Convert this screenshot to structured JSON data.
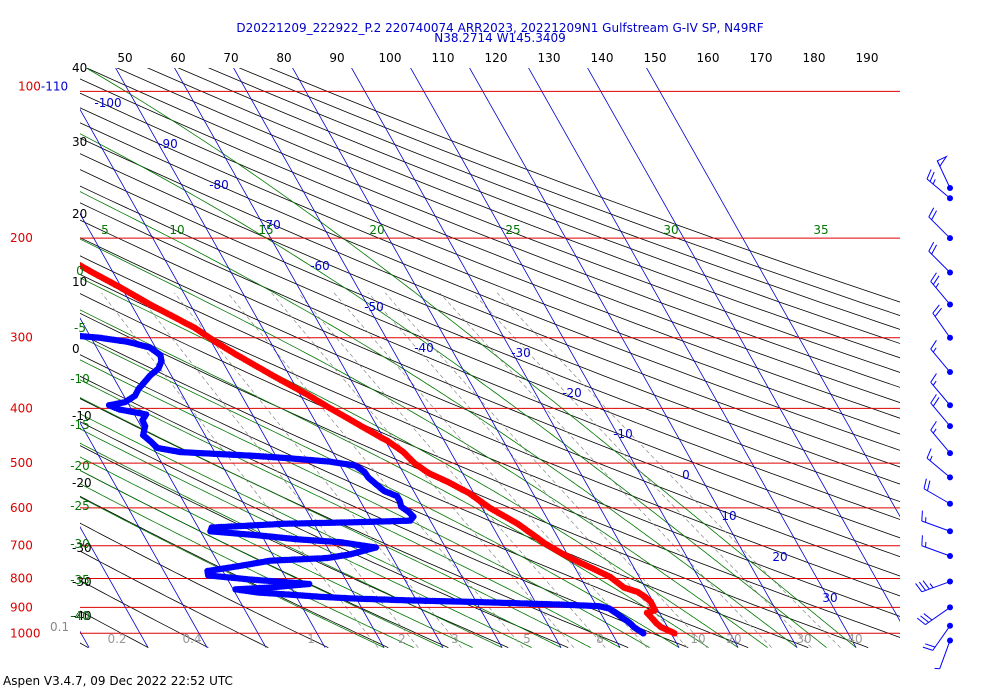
{
  "header": {
    "line1": "D20221209_222922_P.2 220740074 ARR2023, 20221209N1 Gulfstream G-IV SP, N49RF",
    "line2": "N38.2714 W145.3409"
  },
  "footer": {
    "text": "Aspen V3.4.7, 09 Dec 2022  22:52 UTC"
  },
  "colors": {
    "isobar": "#dd0000",
    "isotherm": "#0000cc",
    "dry_adiabat": "#000000",
    "moist_adiabat": "#007700",
    "mixing_ratio": "#888888",
    "temperature": "#ff0000",
    "dewpoint": "#0000ff"
  },
  "chart_data": {
    "type": "skew-t log-p",
    "pressure_axis": {
      "labels": [
        "100-110",
        "200",
        "300",
        "400",
        "500",
        "600",
        "700",
        "800",
        "900",
        "1000"
      ],
      "range_hPa": [
        110,
        1000
      ]
    },
    "height_labels": [
      "40",
      "30",
      "20",
      "10",
      "0",
      "-10",
      "-20",
      "-30",
      "-30",
      "-40"
    ],
    "height_extra_label": "0.1",
    "top_axis_labels": [
      "50",
      "60",
      "70",
      "80",
      "90",
      "100",
      "110",
      "120",
      "130",
      "140",
      "150",
      "160",
      "170",
      "180",
      "190"
    ],
    "isotherm_labels": [
      "-100",
      "-90",
      "-80",
      "-70",
      "-60",
      "-50",
      "-40",
      "-30",
      "-20",
      "-10",
      "0",
      "10",
      "20",
      "30"
    ],
    "moist_adiabat_labels": [
      "5",
      "10",
      "15",
      "20",
      "25",
      "30",
      "35"
    ],
    "left_green_labels": [
      "0",
      "-5",
      "-10",
      "-15",
      "-20",
      "-25",
      "-30",
      "-35",
      "-40"
    ],
    "mixing_ratio_labels": [
      "0.2",
      "0.4",
      "1",
      "2",
      "3",
      "5",
      "8",
      "10",
      "20",
      "30",
      "40"
    ],
    "temperature_profile": [
      {
        "p": 1000,
        "t": 10.6
      },
      {
        "p": 995,
        "t": 10.3
      },
      {
        "p": 985,
        "t": 9.6
      },
      {
        "p": 975,
        "t": 8.9
      },
      {
        "p": 960,
        "t": 8.5
      },
      {
        "p": 945,
        "t": 8.3
      },
      {
        "p": 920,
        "t": 7.9
      },
      {
        "p": 910,
        "t": 9.5
      },
      {
        "p": 880,
        "t": 9.6
      },
      {
        "p": 862,
        "t": 9.1
      },
      {
        "p": 845,
        "t": 8.3
      },
      {
        "p": 830,
        "t": 6.4
      },
      {
        "p": 795,
        "t": 5.1
      },
      {
        "p": 770,
        "t": 3.1
      },
      {
        "p": 740,
        "t": 0.5
      },
      {
        "p": 720,
        "t": -1.0
      },
      {
        "p": 693,
        "t": -2.8
      },
      {
        "p": 670,
        "t": -3.9
      },
      {
        "p": 640,
        "t": -5.5
      },
      {
        "p": 600,
        "t": -8.7
      },
      {
        "p": 565,
        "t": -10.8
      },
      {
        "p": 540,
        "t": -13.3
      },
      {
        "p": 520,
        "t": -15.8
      },
      {
        "p": 500,
        "t": -17.2
      },
      {
        "p": 478,
        "t": -18.0
      },
      {
        "p": 457,
        "t": -19.6
      },
      {
        "p": 443,
        "t": -21.2
      },
      {
        "p": 420,
        "t": -23.8
      },
      {
        "p": 400,
        "t": -26.2
      },
      {
        "p": 378,
        "t": -28.8
      },
      {
        "p": 350,
        "t": -32.8
      },
      {
        "p": 320,
        "t": -37.2
      },
      {
        "p": 305,
        "t": -39.3
      },
      {
        "p": 288,
        "t": -41.5
      },
      {
        "p": 262,
        "t": -46.8
      },
      {
        "p": 244,
        "t": -50.3
      },
      {
        "p": 230,
        "t": -53.5
      },
      {
        "p": 213,
        "t": -57.3
      },
      {
        "p": 200,
        "t": -60.4
      },
      {
        "p": 186,
        "t": -62.2
      },
      {
        "p": 178,
        "t": -62.5
      },
      {
        "p": 175,
        "t": -60.9
      },
      {
        "p": 170,
        "t": -58.5
      }
    ],
    "dewpoint_profile": [
      {
        "p": 1000,
        "t": 5.3
      },
      {
        "p": 990,
        "t": 4.9
      },
      {
        "p": 975,
        "t": 4.3
      },
      {
        "p": 958,
        "t": 4.0
      },
      {
        "p": 940,
        "t": 3.3
      },
      {
        "p": 920,
        "t": 2.6
      },
      {
        "p": 904,
        "t": 1.9
      },
      {
        "p": 895,
        "t": 0.3
      },
      {
        "p": 890,
        "t": -5.4
      },
      {
        "p": 885,
        "t": -12.8
      },
      {
        "p": 880,
        "t": -20.5
      },
      {
        "p": 877,
        "t": -26.5
      },
      {
        "p": 874,
        "t": -32.1
      },
      {
        "p": 868,
        "t": -40.3
      },
      {
        "p": 862,
        "t": -45.8
      },
      {
        "p": 855,
        "t": -50.4
      },
      {
        "p": 847,
        "t": -56.1
      },
      {
        "p": 836,
        "t": -59.6
      },
      {
        "p": 830,
        "t": -53.7
      },
      {
        "p": 818,
        "t": -46.6
      },
      {
        "p": 803,
        "t": -56.3
      },
      {
        "p": 790,
        "t": -62.9
      },
      {
        "p": 776,
        "t": -62.6
      },
      {
        "p": 760,
        "t": -56.6
      },
      {
        "p": 744,
        "t": -51.0
      },
      {
        "p": 736,
        "t": -41.1
      },
      {
        "p": 725,
        "t": -36.8
      },
      {
        "p": 705,
        "t": -31.8
      },
      {
        "p": 690,
        "t": -37.3
      },
      {
        "p": 682,
        "t": -44.2
      },
      {
        "p": 671,
        "t": -50.6
      },
      {
        "p": 660,
        "t": -58.3
      },
      {
        "p": 650,
        "t": -57.7
      },
      {
        "p": 640,
        "t": -45.0
      },
      {
        "p": 636,
        "t": -32.6
      },
      {
        "p": 632,
        "t": -23.4
      },
      {
        "p": 622,
        "t": -22.5
      },
      {
        "p": 611,
        "t": -22.8
      },
      {
        "p": 597,
        "t": -23.6
      },
      {
        "p": 583,
        "t": -23.3
      },
      {
        "p": 572,
        "t": -23.3
      },
      {
        "p": 560,
        "t": -25.0
      },
      {
        "p": 545,
        "t": -25.7
      },
      {
        "p": 530,
        "t": -26.4
      },
      {
        "p": 518,
        "t": -26.5
      },
      {
        "p": 505,
        "t": -27.4
      },
      {
        "p": 497,
        "t": -31.4
      },
      {
        "p": 490,
        "t": -38.1
      },
      {
        "p": 485,
        "t": -44.2
      },
      {
        "p": 478,
        "t": -55.8
      },
      {
        "p": 470,
        "t": -59.3
      },
      {
        "p": 458,
        "t": -59.8
      },
      {
        "p": 446,
        "t": -60.5
      },
      {
        "p": 430,
        "t": -59.3
      },
      {
        "p": 420,
        "t": -59.2
      },
      {
        "p": 410,
        "t": -58.0
      },
      {
        "p": 402,
        "t": -62.0
      },
      {
        "p": 395,
        "t": -63.4
      },
      {
        "p": 390,
        "t": -60.4
      },
      {
        "p": 380,
        "t": -58.1
      },
      {
        "p": 370,
        "t": -56.9
      },
      {
        "p": 362,
        "t": -55.6
      },
      {
        "p": 350,
        "t": -53.6
      },
      {
        "p": 340,
        "t": -51.5
      },
      {
        "p": 330,
        "t": -50.3
      },
      {
        "p": 322,
        "t": -49.9
      },
      {
        "p": 312,
        "t": -51.0
      },
      {
        "p": 305,
        "t": -54.2
      },
      {
        "p": 300,
        "t": -58.6
      },
      {
        "p": 297,
        "t": -63.1
      },
      {
        "p": 292,
        "t": -64.9
      },
      {
        "p": 286,
        "t": -67.4
      },
      {
        "p": 282,
        "t": -68.1
      },
      {
        "p": 278,
        "t": -68.2
      },
      {
        "p": 272,
        "t": -67.4
      },
      {
        "p": 266,
        "t": -66.5
      },
      {
        "p": 260,
        "t": -66.4
      },
      {
        "p": 254,
        "t": -67.4
      },
      {
        "p": 248,
        "t": -68.6
      },
      {
        "p": 242,
        "t": -70.2
      },
      {
        "p": 236,
        "t": -71.7
      },
      {
        "p": 230,
        "t": -73.4
      },
      {
        "p": 226,
        "t": -75.3
      },
      {
        "p": 222,
        "t": -77.0
      },
      {
        "p": 218,
        "t": -78.7
      },
      {
        "p": 214,
        "t": -79.9
      }
    ],
    "wind_barbs": [
      {
        "p": 152,
        "dir": 335,
        "spd": 50
      },
      {
        "p": 170,
        "dir": 310,
        "spd": 25
      },
      {
        "p": 200,
        "dir": 315,
        "spd": 20
      },
      {
        "p": 230,
        "dir": 315,
        "spd": 20
      },
      {
        "p": 262,
        "dir": 320,
        "spd": 25
      },
      {
        "p": 300,
        "dir": 325,
        "spd": 20
      },
      {
        "p": 345,
        "dir": 320,
        "spd": 15
      },
      {
        "p": 395,
        "dir": 320,
        "spd": 15
      },
      {
        "p": 430,
        "dir": 320,
        "spd": 20
      },
      {
        "p": 480,
        "dir": 320,
        "spd": 15
      },
      {
        "p": 530,
        "dir": 310,
        "spd": 15
      },
      {
        "p": 590,
        "dir": 300,
        "spd": 20
      },
      {
        "p": 660,
        "dir": 290,
        "spd": 15
      },
      {
        "p": 730,
        "dir": 290,
        "spd": 15
      },
      {
        "p": 810,
        "dir": 250,
        "spd": 35
      },
      {
        "p": 900,
        "dir": 235,
        "spd": 30
      },
      {
        "p": 970,
        "dir": 215,
        "spd": 20
      },
      {
        "p": 1030,
        "dir": 200,
        "spd": 5
      }
    ]
  }
}
